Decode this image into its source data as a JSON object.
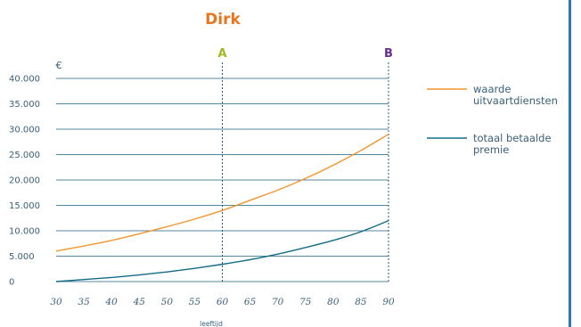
{
  "colors": {
    "title": "#e8761e",
    "grid": "#1f5e7f",
    "axis_text": "#3a5f78",
    "marker_a": "#a4b81e",
    "marker_b": "#6a2f8f",
    "series_orange": "#f0962c",
    "series_blue": "#136b86",
    "right_rule": "#2a78b4"
  },
  "chart_data": {
    "type": "line",
    "title": "Dirk",
    "xlabel": "leeftijd",
    "ylabel": "€",
    "xlim": [
      30,
      90
    ],
    "ylim": [
      0,
      40000
    ],
    "x_ticks": [
      30,
      35,
      40,
      45,
      50,
      55,
      60,
      65,
      70,
      75,
      80,
      85,
      90
    ],
    "x_tick_labels": [
      "30",
      "35",
      "40",
      "45",
      "50",
      "55",
      "60",
      "65",
      "70",
      "75",
      "80",
      "85",
      "90"
    ],
    "y_ticks": [
      0,
      5000,
      10000,
      15000,
      20000,
      25000,
      30000,
      35000,
      40000
    ],
    "y_tick_labels": [
      "0",
      "5.000",
      "10.000",
      "15.000",
      "20.000",
      "25.000",
      "30.000",
      "35.000",
      "40.000"
    ],
    "grid": true,
    "legend_position": "right",
    "markers": [
      {
        "label": "A",
        "x": 60
      },
      {
        "label": "B",
        "x": 90
      }
    ],
    "series": [
      {
        "name": "waarde uitvaartdiensten",
        "legend_lines": [
          "waarde",
          "uitvaartdiensten"
        ],
        "x": [
          30,
          35,
          40,
          45,
          50,
          55,
          60,
          65,
          70,
          75,
          80,
          85,
          90
        ],
        "values": [
          6000,
          7000,
          8100,
          9400,
          10800,
          12300,
          14000,
          16000,
          18000,
          20300,
          22900,
          25800,
          29000
        ]
      },
      {
        "name": "totaal betaalde premie",
        "legend_lines": [
          "totaal betaalde",
          "premie"
        ],
        "x": [
          30,
          35,
          40,
          45,
          50,
          55,
          60,
          65,
          70,
          75,
          80,
          85,
          90
        ],
        "values": [
          0,
          400,
          800,
          1300,
          1900,
          2600,
          3400,
          4300,
          5400,
          6700,
          8100,
          9800,
          12000
        ]
      }
    ]
  }
}
